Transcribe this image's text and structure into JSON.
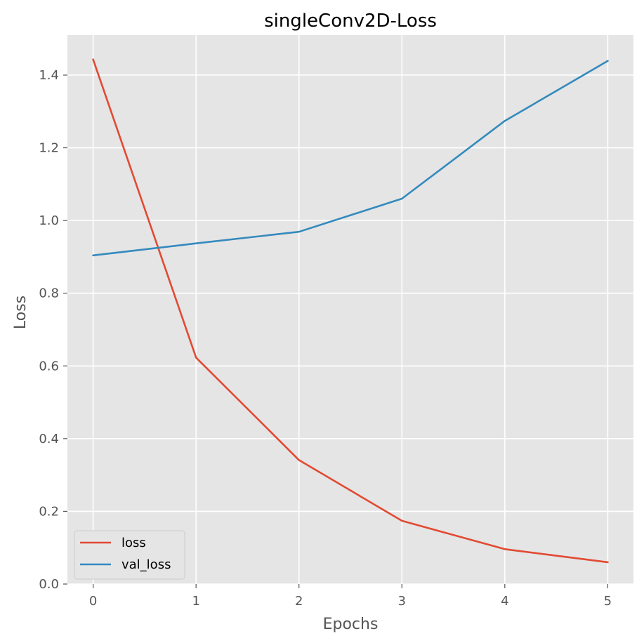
{
  "chart_data": {
    "type": "line",
    "title": "singleConv2D-Loss",
    "xlabel": "Epochs",
    "ylabel": "Loss",
    "x": [
      0,
      1,
      2,
      3,
      4,
      5
    ],
    "xticks": [
      "0",
      "1",
      "2",
      "3",
      "4",
      "5"
    ],
    "yticks": [
      "0.0",
      "0.2",
      "0.4",
      "0.6",
      "0.8",
      "1.0",
      "1.2",
      "1.4"
    ],
    "xlim": [
      -0.25,
      5.25
    ],
    "ylim": [
      0.0,
      1.51
    ],
    "grid": true,
    "legend_position": "lower-left",
    "series": [
      {
        "name": "loss",
        "color": "#E24A33",
        "values": [
          1.443,
          0.623,
          0.341,
          0.174,
          0.096,
          0.06
        ]
      },
      {
        "name": "val_loss",
        "color": "#348ABD",
        "values": [
          0.904,
          0.937,
          0.969,
          1.06,
          1.274,
          1.439
        ]
      }
    ]
  }
}
